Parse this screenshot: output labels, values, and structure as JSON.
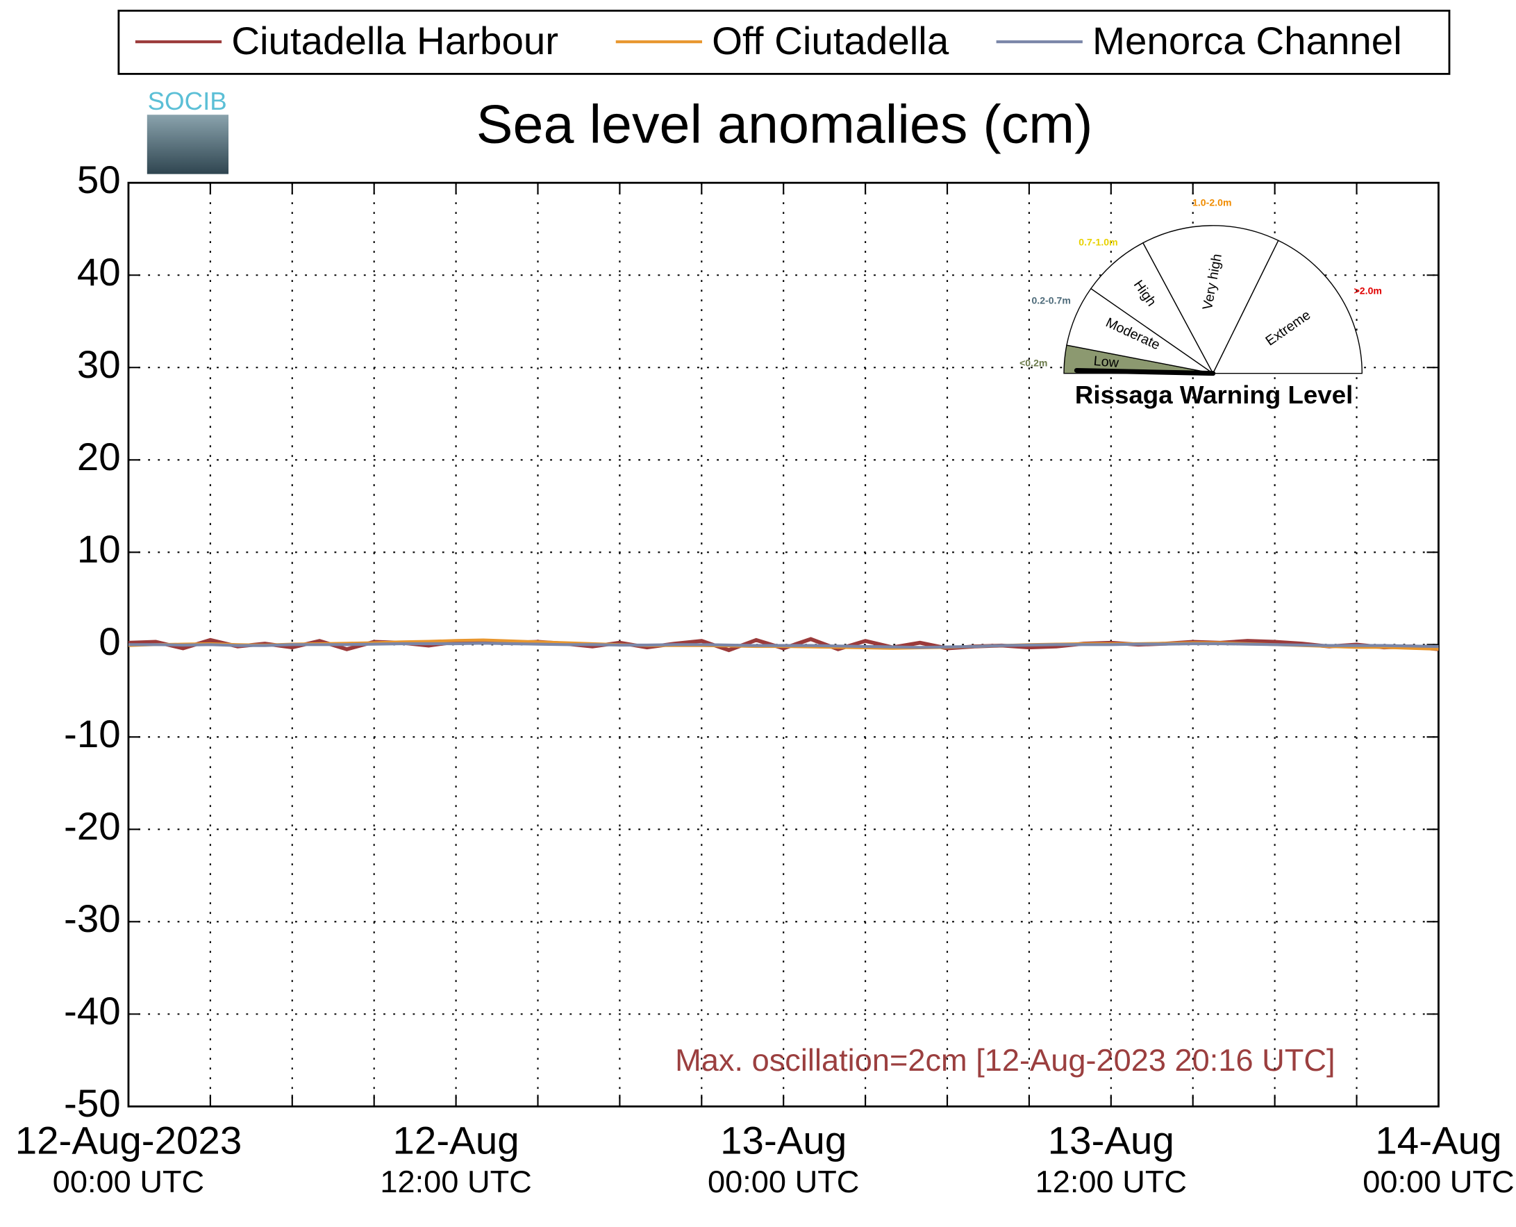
{
  "chart_data": {
    "type": "line",
    "title": "Sea level anomalies (cm)",
    "logo_text": "SOCIB",
    "annotation": "Max. oscillation=2cm [12-Aug-2023 20:16 UTC]",
    "annotation_color": "#9b3f3f",
    "x": [
      0,
      1,
      2,
      3,
      4,
      5,
      6,
      7,
      8,
      9,
      10,
      11,
      12,
      13,
      14,
      15,
      16,
      17,
      18,
      19,
      20,
      21,
      22,
      23,
      24,
      25,
      26,
      27,
      28,
      29,
      30,
      31,
      32,
      33,
      34,
      35,
      36,
      37,
      38,
      39,
      40,
      41,
      42,
      43,
      44,
      45,
      46,
      47,
      48
    ],
    "xlim": [
      0,
      48
    ],
    "xticks": [
      {
        "value": 0,
        "label": [
          "12-Aug-2023",
          "00:00 UTC"
        ]
      },
      {
        "value": 12,
        "label": [
          "12-Aug",
          "12:00 UTC"
        ]
      },
      {
        "value": 24,
        "label": [
          "13-Aug",
          "00:00 UTC"
        ]
      },
      {
        "value": 36,
        "label": [
          "13-Aug",
          "12:00 UTC"
        ]
      },
      {
        "value": 48,
        "label": [
          "14-Aug",
          "00:00 UTC"
        ]
      }
    ],
    "xgrid": [
      3,
      6,
      9,
      12,
      15,
      18,
      21,
      24,
      27,
      30,
      33,
      36,
      39,
      42,
      45
    ],
    "ylim": [
      -50,
      50
    ],
    "yticks": [
      -50,
      -40,
      -30,
      -20,
      -10,
      0,
      10,
      20,
      30,
      40,
      50
    ],
    "grid": true,
    "legend": "top",
    "series": [
      {
        "name": "Ciutadella Harbour",
        "color": "#9b3a3a",
        "values": [
          0.2,
          0.3,
          -0.4,
          0.5,
          -0.2,
          0.1,
          -0.3,
          0.4,
          -0.5,
          0.3,
          0.2,
          -0.1,
          0.3,
          0.4,
          0.2,
          0.3,
          0.1,
          -0.2,
          0.2,
          -0.3,
          0.1,
          0.4,
          -0.6,
          0.5,
          -0.4,
          0.6,
          -0.5,
          0.4,
          -0.3,
          0.2,
          -0.4,
          -0.2,
          -0.1,
          -0.3,
          -0.2,
          0.1,
          0.2,
          0.0,
          0.1,
          0.3,
          0.2,
          0.4,
          0.3,
          0.1,
          -0.2,
          0.0,
          -0.3,
          -0.2,
          -0.5
        ]
      },
      {
        "name": "Off Ciutadella",
        "color": "#e8962e",
        "values": [
          -0.1,
          0,
          0.05,
          0.1,
          0,
          -0.05,
          0.05,
          0.1,
          0.15,
          0.2,
          0.3,
          0.35,
          0.45,
          0.5,
          0.4,
          0.3,
          0.2,
          0.1,
          0,
          -0.1,
          -0.1,
          -0.1,
          -0.15,
          -0.2,
          -0.2,
          -0.25,
          -0.3,
          -0.35,
          -0.4,
          -0.35,
          -0.3,
          -0.2,
          -0.1,
          0,
          0.05,
          0.1,
          0.1,
          0.1,
          0.15,
          0.2,
          0.2,
          0.1,
          0,
          -0.1,
          -0.2,
          -0.3,
          -0.3,
          -0.4,
          -0.5
        ]
      },
      {
        "name": "Menorca Channel",
        "color": "#7a86a8",
        "values": [
          0,
          0,
          -0.05,
          0,
          -0.1,
          -0.1,
          0,
          0,
          0,
          0.05,
          0.1,
          0.1,
          0.1,
          0.15,
          0.1,
          0.05,
          0,
          0,
          -0.05,
          -0.05,
          0,
          0,
          -0.05,
          -0.1,
          -0.1,
          -0.1,
          -0.15,
          -0.2,
          -0.25,
          -0.3,
          -0.25,
          -0.2,
          -0.1,
          -0.05,
          0,
          0,
          0,
          0.05,
          0.05,
          0.1,
          0.1,
          0.05,
          0,
          -0.05,
          -0.1,
          -0.1,
          -0.1,
          -0.15,
          -0.2
        ]
      }
    ],
    "gauge": {
      "title": "Rissaga Warning Level",
      "levels": [
        {
          "name": "Low",
          "range": "<0.2m",
          "color": "#6b7a4b",
          "fill": "#8c9970"
        },
        {
          "name": "Moderate",
          "range": "0.2-0.7m",
          "color": "#4e6b7a",
          "fill": "#ffffff"
        },
        {
          "name": "High",
          "range": "0.7-1.0m",
          "color": "#e8d200",
          "fill": "#ffffff"
        },
        {
          "name": "Very high",
          "range": "1.0-2.0m",
          "color": "#f08c00",
          "fill": "#ffffff"
        },
        {
          "name": "Extreme",
          "range": ">2.0m",
          "color": "#e00000",
          "fill": "#ffffff"
        }
      ]
    }
  }
}
